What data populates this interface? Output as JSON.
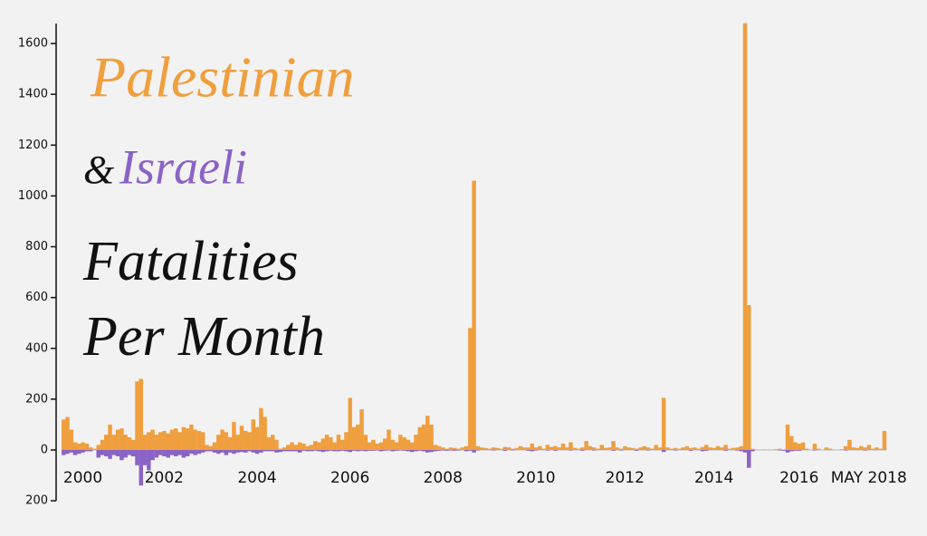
{
  "chart_data": {
    "type": "diverging-bar",
    "title_parts": [
      "&",
      "Fatalities",
      "Per Month"
    ],
    "categories": [
      null,
      null,
      null,
      null,
      null,
      "2000",
      null,
      null,
      null,
      null,
      null,
      null,
      null,
      null,
      null,
      null,
      null,
      null,
      null,
      null,
      null,
      null,
      null,
      null,
      null,
      null,
      "2002",
      null,
      null,
      null,
      null,
      null,
      null,
      null,
      null,
      null,
      null,
      null,
      null,
      null,
      null,
      null,
      null,
      null,
      null,
      null,
      null,
      null,
      null,
      null,
      "2004",
      null,
      null,
      null,
      null,
      null,
      null,
      null,
      null,
      null,
      null,
      null,
      null,
      null,
      null,
      null,
      null,
      null,
      null,
      null,
      null,
      null,
      null,
      null,
      "2006",
      null,
      null,
      null,
      null,
      null,
      null,
      null,
      null,
      null,
      null,
      null,
      null,
      null,
      null,
      null,
      null,
      null,
      null,
      null,
      null,
      null,
      null,
      null,
      "2008",
      null,
      null,
      null,
      null,
      null,
      null,
      null,
      null,
      null,
      null,
      null,
      null,
      null,
      null,
      null,
      null,
      null,
      null,
      null,
      null,
      null,
      null,
      null,
      "2010",
      null,
      null,
      null,
      null,
      null,
      null,
      null,
      null,
      null,
      null,
      null,
      null,
      null,
      null,
      null,
      null,
      null,
      null,
      null,
      null,
      null,
      null,
      "2012",
      null,
      null,
      null,
      null,
      null,
      null,
      null,
      null,
      null,
      null,
      null,
      null,
      null,
      null,
      null,
      null,
      null,
      null,
      null,
      null,
      null,
      null,
      "2014",
      null,
      null,
      null,
      null,
      null,
      null,
      null,
      null,
      null,
      null,
      null,
      null,
      null,
      null,
      null,
      null,
      null,
      null,
      null,
      null,
      null,
      "2016",
      null,
      null,
      null,
      null,
      null,
      null,
      null,
      null,
      null,
      null,
      null,
      null,
      null,
      null,
      null,
      null,
      null,
      "MAY 2018",
      null,
      null,
      null,
      null
    ],
    "series": [
      {
        "name": "Palestinian",
        "color": "#ef9f3e",
        "direction": "up",
        "values": [
          120,
          130,
          80,
          30,
          25,
          30,
          25,
          10,
          5,
          20,
          40,
          60,
          100,
          60,
          80,
          85,
          60,
          50,
          40,
          270,
          280,
          60,
          70,
          80,
          60,
          70,
          75,
          65,
          80,
          85,
          70,
          90,
          85,
          100,
          80,
          75,
          70,
          20,
          15,
          30,
          60,
          80,
          70,
          50,
          110,
          60,
          95,
          75,
          70,
          120,
          90,
          165,
          130,
          50,
          60,
          40,
          5,
          10,
          20,
          30,
          20,
          30,
          25,
          15,
          20,
          35,
          30,
          45,
          60,
          50,
          30,
          60,
          40,
          70,
          205,
          90,
          100,
          160,
          60,
          30,
          40,
          25,
          30,
          45,
          80,
          40,
          30,
          60,
          50,
          40,
          30,
          60,
          90,
          100,
          135,
          100,
          20,
          15,
          10,
          5,
          10,
          8,
          5,
          10,
          15,
          480,
          1060,
          15,
          10,
          8,
          5,
          10,
          8,
          5,
          12,
          10,
          5,
          8,
          15,
          10,
          10,
          25,
          10,
          15,
          5,
          20,
          12,
          15,
          10,
          25,
          10,
          30,
          8,
          5,
          10,
          35,
          15,
          10,
          5,
          20,
          8,
          10,
          35,
          10,
          5,
          15,
          10,
          8,
          5,
          10,
          15,
          10,
          5,
          20,
          10,
          205,
          10,
          5,
          8,
          5,
          10,
          15,
          8,
          10,
          5,
          12,
          20,
          10,
          8,
          15,
          10,
          20,
          5,
          8,
          10,
          15,
          1680,
          570,
          5,
          2,
          0,
          2,
          0,
          0,
          3,
          5,
          0,
          100,
          55,
          30,
          25,
          30,
          5,
          0,
          25,
          5,
          0,
          10,
          5,
          0,
          0,
          3,
          15,
          40,
          10,
          8,
          15,
          10,
          20,
          5,
          10,
          5,
          75
        ]
      },
      {
        "name": "Israeli",
        "color": "#8a63c6",
        "direction": "down",
        "values": [
          20,
          15,
          10,
          20,
          15,
          10,
          5,
          5,
          0,
          30,
          20,
          25,
          35,
          20,
          25,
          40,
          30,
          20,
          25,
          60,
          140,
          60,
          80,
          40,
          30,
          20,
          25,
          30,
          20,
          25,
          20,
          30,
          25,
          15,
          20,
          15,
          10,
          5,
          5,
          10,
          15,
          10,
          20,
          10,
          15,
          10,
          8,
          10,
          5,
          10,
          15,
          10,
          5,
          5,
          5,
          10,
          8,
          5,
          5,
          5,
          5,
          10,
          3,
          5,
          5,
          3,
          5,
          8,
          5,
          3,
          5,
          5,
          3,
          5,
          8,
          3,
          5,
          3,
          5,
          3,
          3,
          2,
          5,
          3,
          2,
          5,
          3,
          2,
          3,
          5,
          8,
          5,
          3,
          5,
          10,
          8,
          5,
          3,
          2,
          3,
          2,
          3,
          2,
          0,
          5,
          3,
          10,
          2,
          0,
          0,
          0,
          2,
          0,
          0,
          3,
          0,
          2,
          0,
          0,
          0,
          3,
          5,
          2,
          0,
          0,
          2,
          0,
          3,
          0,
          0,
          0,
          2,
          0,
          0,
          3,
          0,
          0,
          2,
          0,
          0,
          0,
          0,
          3,
          0,
          2,
          0,
          0,
          0,
          3,
          0,
          0,
          2,
          0,
          0,
          0,
          8,
          0,
          0,
          2,
          0,
          0,
          0,
          3,
          0,
          0,
          5,
          3,
          0,
          0,
          0,
          0,
          3,
          0,
          0,
          2,
          5,
          10,
          70,
          5,
          0,
          0,
          0,
          0,
          0,
          0,
          2,
          3,
          10,
          5,
          3,
          3,
          0,
          0,
          0,
          2,
          0,
          0,
          0,
          0,
          0,
          0,
          0,
          2,
          0,
          0,
          0,
          0,
          2,
          0,
          0,
          0,
          0,
          0
        ]
      }
    ],
    "ylim": [
      -200,
      1650
    ],
    "yticks": [
      {
        "value": -200,
        "label": "200"
      },
      0,
      200,
      400,
      600,
      800,
      1000,
      1200,
      1400,
      1600
    ]
  }
}
